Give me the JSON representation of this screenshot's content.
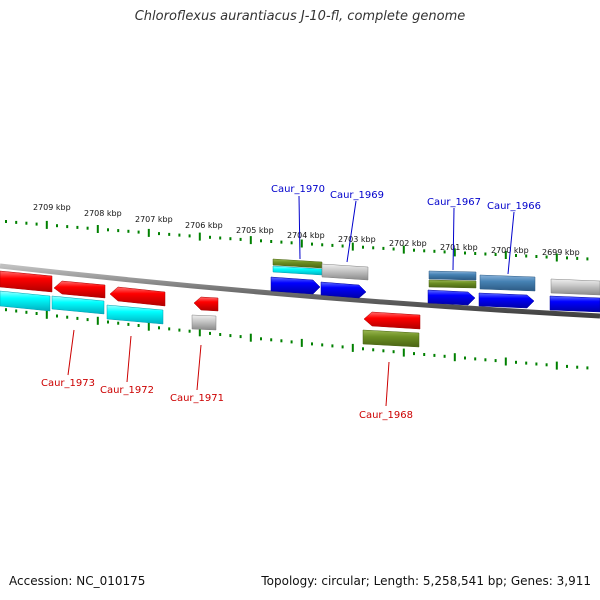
{
  "title": "Chloroflexus aurantiacus J-10-fl, complete genome",
  "footer": {
    "accession": "Accession: NC_010175",
    "info": "Topology: circular; Length: 5,258,541 bp; Genes: 3,911"
  },
  "colors": {
    "background": "#ffffff",
    "backbone": "#808080",
    "tick": "#008000",
    "label_forward": "#0000cc",
    "label_reverse": "#cc0000"
  },
  "scale": {
    "unit": "kbp",
    "labels": [
      "2709 kbp",
      "2708 kbp",
      "2707 kbp",
      "2706 kbp",
      "2705 kbp",
      "2704 kbp",
      "2703 kbp",
      "2702 kbp",
      "2701 kbp",
      "2700 kbp",
      "2699 kbp"
    ]
  },
  "gene_labels": {
    "forward": [
      "Caur_1970",
      "Caur_1969",
      "Caur_1967",
      "Caur_1966"
    ],
    "reverse": [
      "Caur_1973",
      "Caur_1972",
      "Caur_1971",
      "Caur_1968"
    ]
  },
  "features": [
    {
      "name": "Caur_1973",
      "strand": "reverse",
      "colors": [
        "red",
        "cyan"
      ]
    },
    {
      "name": "Caur_1972",
      "strand": "reverse",
      "colors": [
        "red",
        "cyan"
      ]
    },
    {
      "name": "Caur_1971",
      "strand": "reverse",
      "colors": [
        "red",
        "gray"
      ]
    },
    {
      "name": "Caur_1970",
      "strand": "forward",
      "colors": [
        "olive",
        "cyan",
        "blue"
      ]
    },
    {
      "name": "Caur_1969",
      "strand": "forward",
      "colors": [
        "gray",
        "blue"
      ]
    },
    {
      "name": "Caur_1968",
      "strand": "reverse",
      "colors": [
        "red",
        "olive"
      ]
    },
    {
      "name": "Caur_1967",
      "strand": "forward",
      "colors": [
        "steelblue",
        "olive",
        "blue"
      ]
    },
    {
      "name": "Caur_1966",
      "strand": "forward",
      "colors": [
        "steelblue",
        "blue"
      ]
    }
  ]
}
